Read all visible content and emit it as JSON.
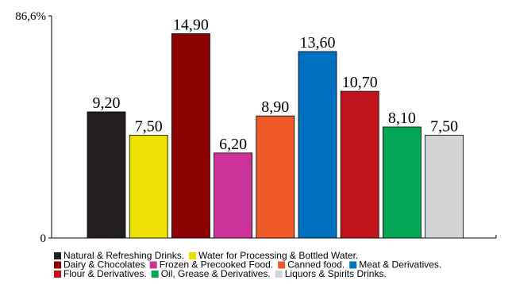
{
  "chart_data": {
    "type": "bar",
    "categories": [
      "Natural & Refreshing Drinks.",
      "Water for Processing & Bottled Water.",
      "Dairy & Chocolates",
      "Frozen & Precooked Food.",
      "Canned food.",
      "Meat & Derivatives.",
      "Flour & Derivatives.",
      "Oil, Grease & Derivatives.",
      "Liquors & Spirits Drinks."
    ],
    "values": [
      9.2,
      7.5,
      14.9,
      6.2,
      8.9,
      13.6,
      10.7,
      8.1,
      7.5
    ],
    "value_labels": [
      "9,20",
      "7,50",
      "14,90",
      "6,20",
      "8,90",
      "13,60",
      "10,70",
      "8,10",
      "7,50"
    ],
    "colors": [
      "#231f20",
      "#ede000",
      "#8b0000",
      "#cc3399",
      "#f05a28",
      "#0070c0",
      "#c0141c",
      "#00a651",
      "#d1d3d4"
    ],
    "ylim": [
      0,
      16.2
    ],
    "yticks": [
      0,
      {
        "value": 16.2,
        "label": "86,6%"
      }
    ],
    "grid": false
  }
}
